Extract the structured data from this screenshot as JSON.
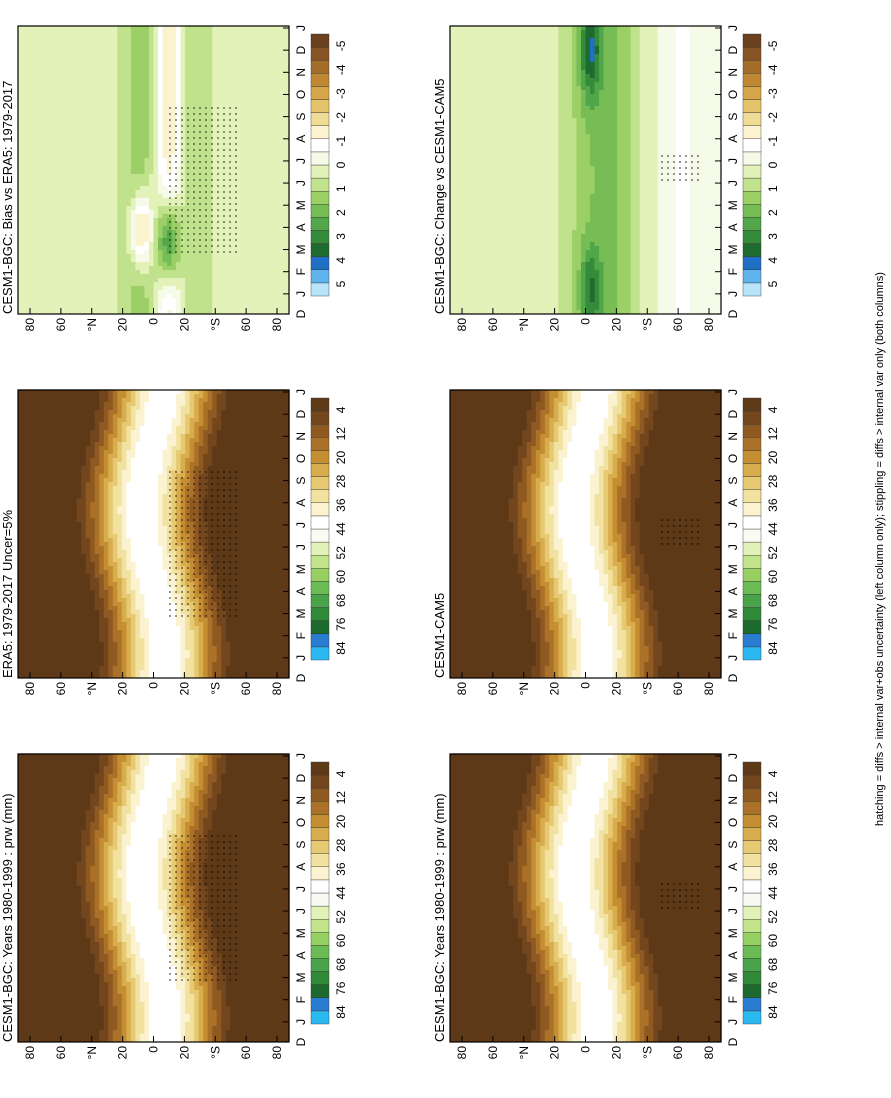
{
  "figure": {
    "footnote": "hatching = diffs > internal var+obs uncertainty (left column only); stippling = diffs > internal var only (both columns)"
  },
  "colors": {
    "prw_scale": [
      "#29b8f0",
      "#2a7cd0",
      "#1d6a2e",
      "#2f8a3a",
      "#4aa34a",
      "#6cbc55",
      "#96d063",
      "#c2e48a",
      "#e2f2b8",
      "#f8fbf2",
      "#ffffff",
      "#fbf3cf",
      "#f2e2a1",
      "#e7c973",
      "#d8ad4e",
      "#c58e33",
      "#ab7128",
      "#8f5a22",
      "#74461d",
      "#5e3918"
    ],
    "diff_scale": [
      "#b7e3fb",
      "#5fb3ec",
      "#1f6fc6",
      "#1f6a2e",
      "#348c3a",
      "#51a64a",
      "#76bd55",
      "#9ccf66",
      "#c0e28c",
      "#e2f2b8",
      "#f6fae8",
      "#ffffff",
      "#fbf3cf",
      "#f0dc97",
      "#e4c36a",
      "#d5a64a",
      "#c08835",
      "#a36d29",
      "#865523",
      "#6a411c"
    ]
  },
  "chart_data": [
    {
      "type": "heatmap",
      "name": "panel-model-left",
      "title": "CESM1-BGC: Years 1980-1999 : prw (mm)",
      "x": [
        "J",
        "F",
        "M",
        "A",
        "M",
        "J",
        "J",
        "A",
        "S",
        "O",
        "N",
        "D",
        "J"
      ],
      "y_ticks": [
        "80",
        "60",
        "°N",
        "20",
        "0",
        "20",
        "°S",
        "60",
        "80"
      ],
      "ylim": [
        -90,
        90
      ],
      "x_label_extra": "D",
      "colorbar": [
        "84",
        "76",
        "68",
        "60",
        "52",
        "44",
        "36",
        "28",
        "20",
        "12",
        "4"
      ],
      "field": "prw"
    },
    {
      "type": "heatmap",
      "name": "panel-model-right",
      "title": "CESM1-BGC: Years 1980-1999 : prw (mm)",
      "x": [
        "J",
        "F",
        "M",
        "A",
        "M",
        "J",
        "J",
        "A",
        "S",
        "O",
        "N",
        "D",
        "J"
      ],
      "y_ticks": [
        "80",
        "60",
        "°N",
        "20",
        "0",
        "20",
        "°S",
        "60",
        "80"
      ],
      "ylim": [
        -90,
        90
      ],
      "x_label_extra": "D",
      "colorbar": [
        "84",
        "76",
        "68",
        "60",
        "52",
        "44",
        "36",
        "28",
        "20",
        "12",
        "4"
      ],
      "field": "prw"
    },
    {
      "type": "heatmap",
      "name": "panel-obs",
      "title": "ERA5: 1979-2017 Uncer=5%",
      "x": [
        "J",
        "F",
        "M",
        "A",
        "M",
        "J",
        "J",
        "A",
        "S",
        "O",
        "N",
        "D",
        "J"
      ],
      "y_ticks": [
        "80",
        "60",
        "°N",
        "20",
        "0",
        "20",
        "°S",
        "60",
        "80"
      ],
      "ylim": [
        -90,
        90
      ],
      "x_label_extra": "D",
      "colorbar": [
        "84",
        "76",
        "68",
        "60",
        "52",
        "44",
        "36",
        "28",
        "20",
        "12",
        "4"
      ],
      "field": "prw"
    },
    {
      "type": "heatmap",
      "name": "panel-ref",
      "title": "CESM1-CAM5",
      "x": [
        "J",
        "F",
        "M",
        "A",
        "M",
        "J",
        "J",
        "A",
        "S",
        "O",
        "N",
        "D",
        "J"
      ],
      "y_ticks": [
        "80",
        "60",
        "°N",
        "20",
        "0",
        "20",
        "°S",
        "60",
        "80"
      ],
      "ylim": [
        -90,
        90
      ],
      "x_label_extra": "D",
      "colorbar": [
        "84",
        "76",
        "68",
        "60",
        "52",
        "44",
        "36",
        "28",
        "20",
        "12",
        "4"
      ],
      "field": "prw"
    },
    {
      "type": "heatmap",
      "name": "panel-bias",
      "title": "CESM1-BGC: Bias vs ERA5: 1979-2017",
      "x": [
        "J",
        "F",
        "M",
        "A",
        "M",
        "J",
        "J",
        "A",
        "S",
        "O",
        "N",
        "D",
        "J"
      ],
      "y_ticks": [
        "80",
        "60",
        "°N",
        "20",
        "0",
        "20",
        "°S",
        "60",
        "80"
      ],
      "ylim": [
        -90,
        90
      ],
      "x_label_extra": "D",
      "colorbar": [
        "5",
        "4",
        "3",
        "2",
        "1",
        "0",
        "-1",
        "-2",
        "-3",
        "-4",
        "-5"
      ],
      "field": "bias"
    },
    {
      "type": "heatmap",
      "name": "panel-change",
      "title": "CESM1-BGC: Change vs CESM1-CAM5",
      "x": [
        "J",
        "F",
        "M",
        "A",
        "M",
        "J",
        "J",
        "A",
        "S",
        "O",
        "N",
        "D",
        "J"
      ],
      "y_ticks": [
        "80",
        "60",
        "°N",
        "20",
        "0",
        "20",
        "°S",
        "60",
        "80"
      ],
      "ylim": [
        -90,
        90
      ],
      "x_label_extra": "D",
      "colorbar": [
        "5",
        "4",
        "3",
        "2",
        "1",
        "0",
        "-1",
        "-2",
        "-3",
        "-4",
        "-5"
      ],
      "field": "change"
    }
  ]
}
